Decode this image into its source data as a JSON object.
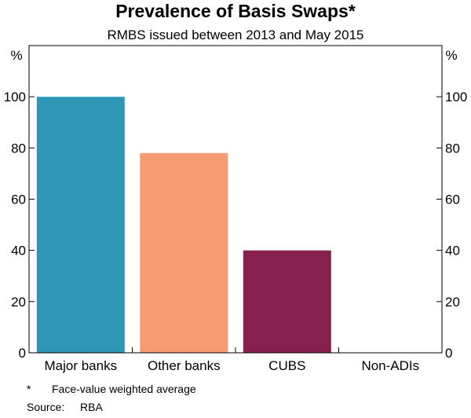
{
  "chart_data": {
    "type": "bar",
    "title": "Prevalence of Basis Swaps*",
    "subtitle": "RMBS issued between 2013 and May 2015",
    "categories": [
      "Major banks",
      "Other banks",
      "CUBS",
      "Non-ADIs"
    ],
    "values": [
      100,
      78,
      40,
      0
    ],
    "colors": [
      "#2E97B5",
      "#F79C72",
      "#85204F",
      "#85204F"
    ],
    "ylabel_left": "%",
    "ylabel_right": "%",
    "ylim": [
      0,
      120
    ],
    "yticks": [
      0,
      20,
      40,
      60,
      80,
      100
    ],
    "grid": false,
    "footnote": {
      "marker": "*",
      "text": "Face-value weighted average"
    },
    "source": {
      "label": "Source:",
      "text": "RBA"
    }
  }
}
